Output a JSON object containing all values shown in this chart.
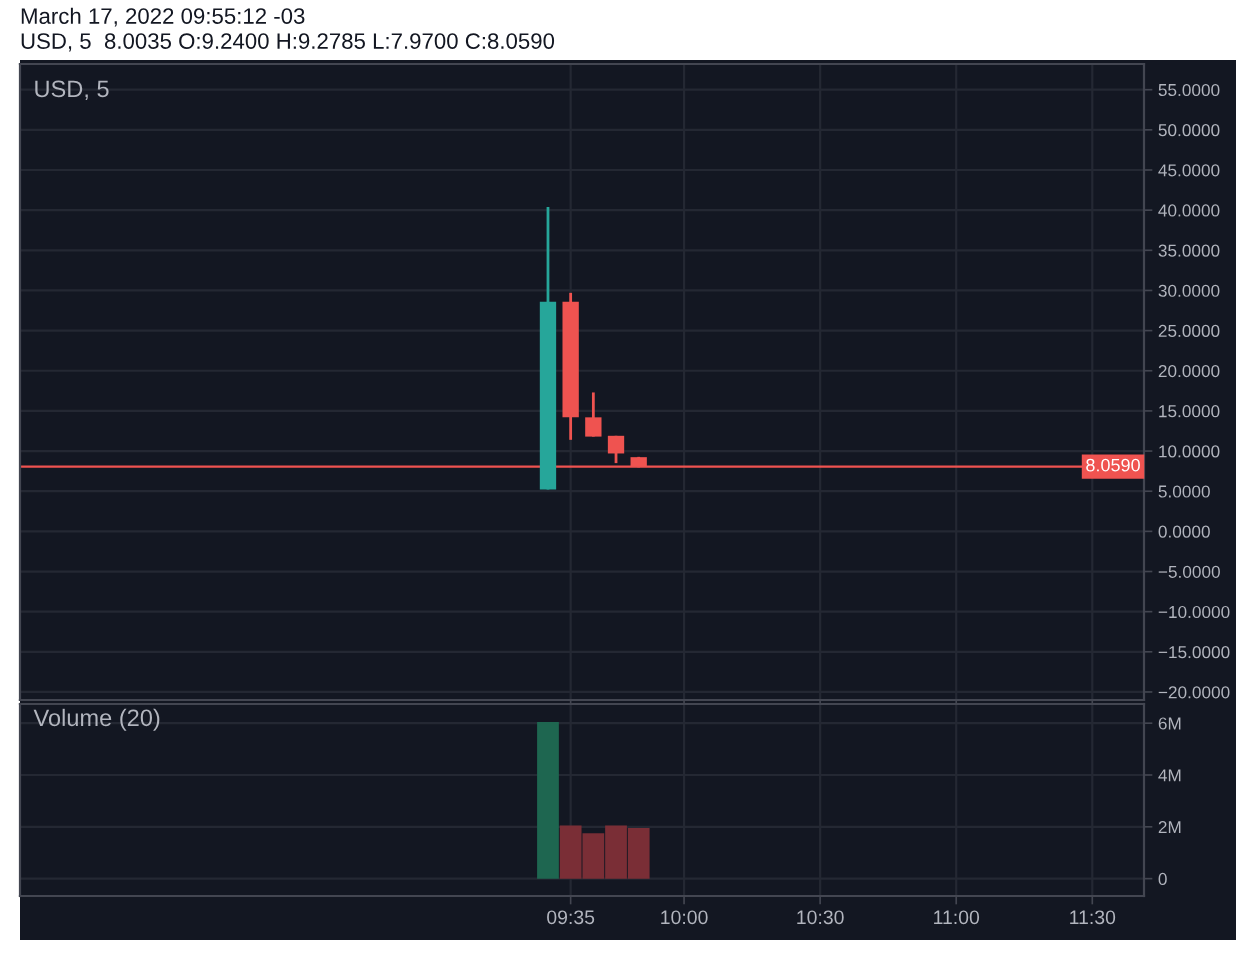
{
  "chart_data": [
    {
      "type": "candlestick",
      "title": "USD, 5",
      "annotations": [
        "March 17, 2022 09:55:12 -03",
        "USD, 5  8.0035 O:9.2400 H:9.2785 L:7.9700 C:8.0590"
      ],
      "x": [
        9.5,
        9.5833,
        9.6667,
        9.75,
        9.8333
      ],
      "ohlc": [
        [
          5.2,
          40.4,
          5.2,
          28.6
        ],
        [
          28.6,
          29.7,
          11.4,
          14.2
        ],
        [
          14.2,
          17.3,
          11.8,
          11.8
        ],
        [
          11.9,
          11.9,
          8.5,
          9.7
        ],
        [
          9.24,
          9.2785,
          7.97,
          8.059
        ]
      ],
      "colors": [
        "#26a69a",
        "#ef5350",
        "#ef5350",
        "#ef5350",
        "#ef5350"
      ],
      "xlim": [
        7.56,
        11.69
      ],
      "xticks": [
        {
          "value": 9.5833,
          "label": null
        },
        {
          "value": 10,
          "label": null
        },
        {
          "value": 10.5,
          "label": null
        },
        {
          "value": 11,
          "label": null
        },
        {
          "value": 11.5,
          "label": null
        }
      ],
      "ylim": [
        -21,
        58.2
      ],
      "yticks": [
        {
          "value": -20,
          "label": "−20.0000"
        },
        {
          "value": -15,
          "label": "−15.0000"
        },
        {
          "value": -10,
          "label": "−10.0000"
        },
        {
          "value": -5,
          "label": "−5.0000"
        },
        {
          "value": 0,
          "label": "0.0000"
        },
        {
          "value": 5,
          "label": "5.0000"
        },
        {
          "value": 10,
          "label": "10.0000"
        },
        {
          "value": 15,
          "label": "15.0000"
        },
        {
          "value": 20,
          "label": "20.0000"
        },
        {
          "value": 25,
          "label": "25.0000"
        },
        {
          "value": 30,
          "label": "30.0000"
        },
        {
          "value": 35,
          "label": "35.0000"
        },
        {
          "value": 40,
          "label": "40.0000"
        },
        {
          "value": 45,
          "label": "45.0000"
        },
        {
          "value": 50,
          "label": "50.0000"
        },
        {
          "value": 55,
          "label": "55.0000"
        }
      ],
      "grid": true,
      "tick_labels": "y",
      "ref_lines": [
        {
          "axis": "y",
          "value": 8.059,
          "label": "8.0590",
          "color": "#ef5350"
        }
      ]
    },
    {
      "type": "bar",
      "title": "Volume (20)",
      "x": [
        9.5,
        9.5833,
        9.6667,
        9.75,
        9.8333
      ],
      "values": [
        6050000,
        2050000,
        1750000,
        2050000,
        1950000
      ],
      "colors": [
        "#1e6650",
        "#7a2e36",
        "#7a2e36",
        "#7a2e36",
        "#7a2e36"
      ],
      "xlim": [
        7.56,
        11.69
      ],
      "xticks": [
        {
          "value": 9.5833,
          "label": "09:35"
        },
        {
          "value": 10,
          "label": "10:00"
        },
        {
          "value": 10.5,
          "label": "10:30"
        },
        {
          "value": 11,
          "label": "11:00"
        },
        {
          "value": 11.5,
          "label": "11:30"
        }
      ],
      "ylim": [
        -670000,
        6740000
      ],
      "yticks": [
        0,
        {
          "value": 2000000,
          "label": "2M"
        },
        {
          "value": 4000000,
          "label": "4M"
        },
        {
          "value": 6000000,
          "label": "6M"
        }
      ],
      "grid": true
    }
  ]
}
